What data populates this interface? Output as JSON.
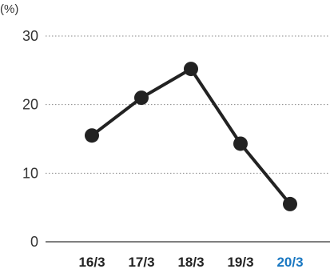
{
  "chart_data": {
    "type": "line",
    "unit_label": "(%)",
    "categories": [
      "16/3",
      "17/3",
      "18/3",
      "19/3",
      "20/3"
    ],
    "values": [
      15.5,
      21.0,
      25.2,
      14.3,
      5.5
    ],
    "ylim": [
      0,
      30
    ],
    "yticks": [
      "0",
      "10",
      "20",
      "30"
    ],
    "grid": true,
    "colors": {
      "line": "#222222",
      "point": "#222222",
      "grid": "#888888",
      "axis": "#333333",
      "tick_label": "#222222",
      "highlight_tick_label": "#1a78c2"
    },
    "highlight_index": 4
  }
}
